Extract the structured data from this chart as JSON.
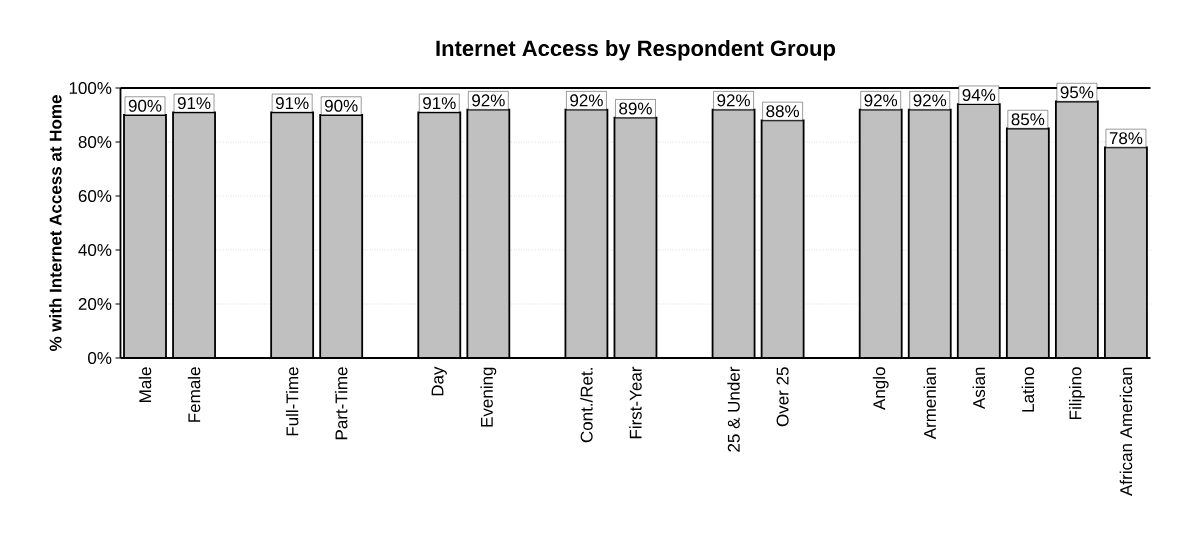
{
  "chart_data": {
    "type": "bar",
    "title": "Internet Access by Respondent Group",
    "ylabel": "% with Internet Access at Home",
    "categories": [
      "Male",
      "Female",
      null,
      "Full-Time",
      "Part-Time",
      null,
      "Day",
      "Evening",
      null,
      "Cont./Ret.",
      "First-Year",
      null,
      "25 & Under",
      "Over 25",
      null,
      "Anglo",
      "Armenian",
      "Asian",
      "Latino",
      "Filipino",
      "African American"
    ],
    "values": [
      90,
      91,
      null,
      91,
      90,
      null,
      91,
      92,
      null,
      92,
      89,
      null,
      92,
      88,
      null,
      92,
      92,
      94,
      85,
      95,
      78
    ],
    "value_labels": [
      "90%",
      "91%",
      null,
      "91%",
      "90%",
      null,
      "91%",
      "92%",
      null,
      "92%",
      "89%",
      null,
      "92%",
      "88%",
      null,
      "92%",
      "92%",
      "94%",
      "85%",
      "95%",
      "78%"
    ],
    "color": "#c0c0c0",
    "ylim": [
      0,
      100
    ],
    "yticks": [
      {
        "value": 0,
        "label": "0%"
      },
      {
        "value": 20,
        "label": "20%"
      },
      {
        "value": 40,
        "label": "40%"
      },
      {
        "value": 60,
        "label": "60%"
      },
      {
        "value": 80,
        "label": "80%"
      },
      {
        "value": 100,
        "label": "100%"
      }
    ],
    "grid": "y",
    "legend": false
  }
}
